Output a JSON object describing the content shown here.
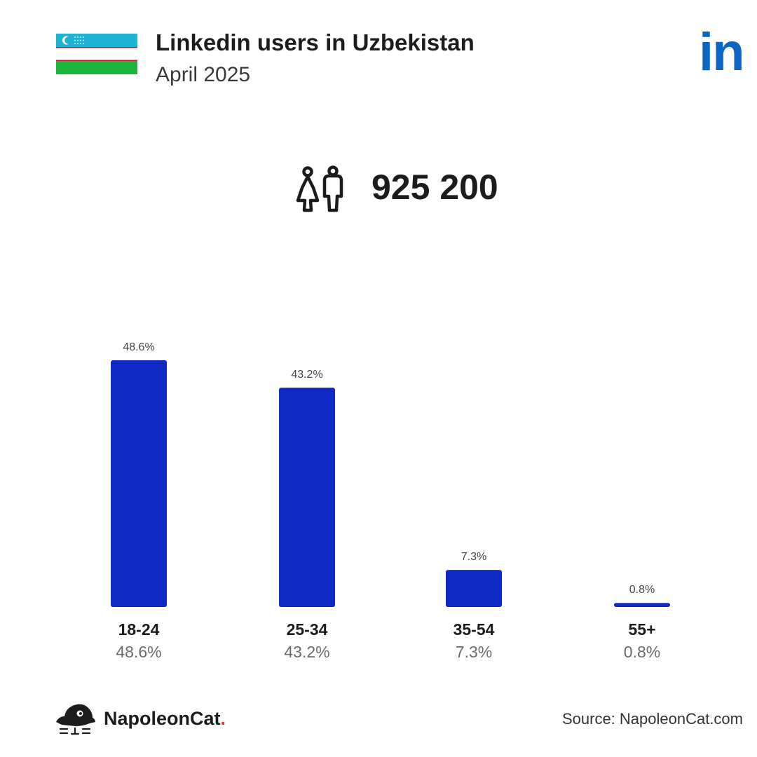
{
  "header": {
    "title": "Linkedin users in Uzbekistan",
    "subtitle": "April 2025",
    "flag_icon": "uzbekistan-flag-icon",
    "logo_icon": "linkedin-logo-icon",
    "logo_text": "in"
  },
  "summary": {
    "icon": "users-icon",
    "total_users": "925 200"
  },
  "colors": {
    "bar": "#0f29c4",
    "linkedin_brand": "#0a66c2",
    "flag_blue": "#1eb3d3",
    "flag_green": "#1db43d",
    "flag_red": "#ce1126"
  },
  "chart_data": {
    "type": "bar",
    "categories": [
      "18-24",
      "25-34",
      "35-54",
      "55+"
    ],
    "values": [
      48.6,
      43.2,
      7.3,
      0.8
    ],
    "value_labels": [
      "48.6%",
      "43.2%",
      "7.3%",
      "0.8%"
    ],
    "title": "Linkedin users in Uzbekistan",
    "xlabel": "",
    "ylabel": "",
    "ylim": [
      0,
      48.6
    ],
    "grid": false,
    "legend": "none"
  },
  "footer": {
    "brand_name": "NapoleonCat",
    "brand_dot": ".",
    "brand_icon": "napoleoncat-logo-icon",
    "source": "Source: NapoleonCat.com"
  }
}
